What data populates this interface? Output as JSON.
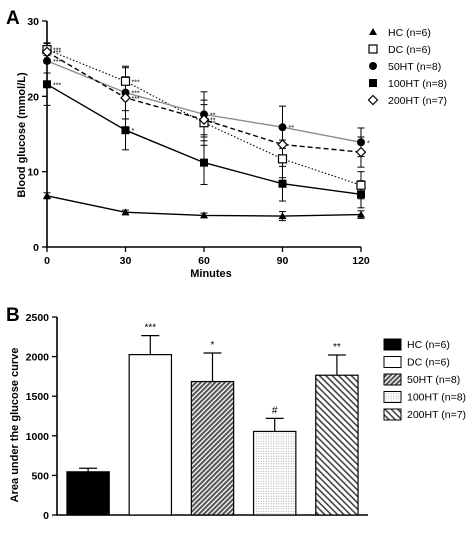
{
  "panel_a_label": "A",
  "panel_b_label": "B",
  "chart_data": [
    {
      "type": "line",
      "panel": "A",
      "xlabel": "Minutes",
      "ylabel": "Blood glucose (mmol/L)",
      "x": [
        0,
        30,
        60,
        90,
        120
      ],
      "xticks": [
        "0",
        "30",
        "60",
        "90",
        "120"
      ],
      "yticks": [
        "0",
        "10",
        "20",
        "30"
      ],
      "xlim": [
        0,
        120
      ],
      "ylim": [
        0,
        30
      ],
      "legend_position": "top-right",
      "series": [
        {
          "name": "HC (n=6)",
          "marker": "triangle",
          "line": "solid-black",
          "values": [
            6.8,
            4.6,
            4.2,
            4.1,
            4.3
          ],
          "errors": [
            0.4,
            0.3,
            0.3,
            0.6,
            0.5
          ],
          "sig": [
            "",
            "",
            "",
            "",
            ""
          ]
        },
        {
          "name": "DC (n=6)",
          "marker": "open-square",
          "line": "dotted-black",
          "values": [
            26.2,
            22.0,
            16.5,
            11.7,
            8.2
          ],
          "errors": [
            0.8,
            1.8,
            3.0,
            2.5,
            1.8
          ],
          "sig": [
            "***",
            "***",
            "**",
            "",
            ""
          ]
        },
        {
          "name": "50HT (n=8)",
          "marker": "filled-circle",
          "line": "solid-gray",
          "values": [
            24.7,
            20.5,
            17.6,
            15.9,
            13.9
          ],
          "errors": [
            1.6,
            3.5,
            3.0,
            2.8,
            1.9
          ],
          "sig": [
            "***",
            "***",
            "**",
            "**",
            "*"
          ]
        },
        {
          "name": "100HT (n=8)",
          "marker": "filled-square",
          "line": "solid-black",
          "values": [
            21.6,
            15.5,
            11.2,
            8.4,
            7.0
          ],
          "errors": [
            2.8,
            2.6,
            2.9,
            2.3,
            1.8
          ],
          "sig": [
            "***",
            "*",
            "",
            "",
            ""
          ]
        },
        {
          "name": "200HT (n=7)",
          "marker": "open-diamond",
          "line": "dashed-black",
          "values": [
            25.9,
            19.8,
            16.9,
            13.6,
            12.6
          ],
          "errors": [
            1.2,
            2.8,
            2.0,
            2.2,
            2.0
          ],
          "sig": [
            "***",
            "***",
            "**",
            "",
            ""
          ]
        }
      ]
    },
    {
      "type": "bar",
      "panel": "B",
      "ylabel": "Area under the glucose curve",
      "xlabel": "",
      "yticks": [
        "0",
        "500",
        "1000",
        "1500",
        "2000",
        "2500"
      ],
      "ylim": [
        0,
        2500
      ],
      "legend_position": "right",
      "categories": [
        "HC (n=6)",
        "DC (n=6)",
        "50HT (n=8)",
        "100HT (n=8)",
        "200HT (n=7)"
      ],
      "values": [
        545,
        2025,
        1685,
        1055,
        1765
      ],
      "errors": [
        45,
        240,
        360,
        165,
        255
      ],
      "sig": [
        "",
        "***",
        "*",
        "#",
        "**"
      ],
      "fills": [
        "solid-black",
        "white",
        "dense-hatch",
        "light-dots",
        "diagonal-hatch"
      ]
    }
  ]
}
